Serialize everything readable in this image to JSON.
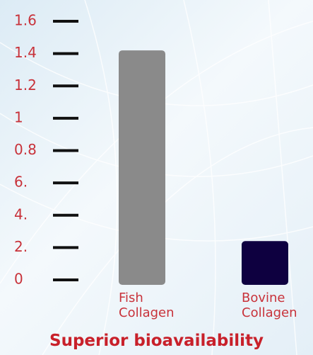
{
  "chart_data": {
    "type": "bar",
    "title": "Superior bioavailability",
    "categories": [
      "Fish Collagen",
      "Bovine Collagen"
    ],
    "values": [
      1.42,
      0.24
    ],
    "colors": [
      "#8a8a8a",
      "#0e0040"
    ],
    "ylim": [
      0,
      1.6
    ],
    "yticks": [
      {
        "value": 0,
        "label": "0"
      },
      {
        "value": 0.2,
        "label": "2."
      },
      {
        "value": 0.4,
        "label": "4."
      },
      {
        "value": 0.6,
        "label": "6."
      },
      0.8,
      1,
      1.2,
      1.4,
      1.6
    ]
  }
}
